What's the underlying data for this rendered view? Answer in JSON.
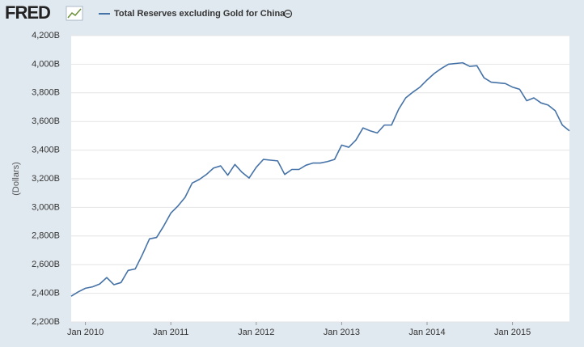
{
  "logo": "FRED",
  "chart_data": {
    "type": "line",
    "y_label": "(Dollars)",
    "x": [
      "2009-11",
      "2009-12",
      "2010-01",
      "2010-02",
      "2010-03",
      "2010-04",
      "2010-05",
      "2010-06",
      "2010-07",
      "2010-08",
      "2010-09",
      "2010-10",
      "2010-11",
      "2010-12",
      "2011-01",
      "2011-02",
      "2011-03",
      "2011-04",
      "2011-05",
      "2011-06",
      "2011-07",
      "2011-08",
      "2011-09",
      "2011-10",
      "2011-11",
      "2011-12",
      "2012-01",
      "2012-02",
      "2012-03",
      "2012-04",
      "2012-05",
      "2012-06",
      "2012-07",
      "2012-08",
      "2012-09",
      "2012-10",
      "2012-11",
      "2012-12",
      "2013-01",
      "2013-02",
      "2013-03",
      "2013-04",
      "2013-05",
      "2013-06",
      "2013-07",
      "2013-08",
      "2013-09",
      "2013-10",
      "2013-11",
      "2013-12",
      "2014-01",
      "2014-02",
      "2014-03",
      "2014-04",
      "2014-05",
      "2014-06",
      "2014-07",
      "2014-08",
      "2014-09",
      "2014-10",
      "2014-11",
      "2014-12",
      "2015-01",
      "2015-02",
      "2015-03",
      "2015-04",
      "2015-05",
      "2015-06",
      "2015-07",
      "2015-08",
      "2015-09"
    ],
    "series": [
      {
        "name": "Total Reserves excluding Gold for China",
        "color": "#4572a7",
        "values": [
          2380,
          2410,
          2435,
          2445,
          2465,
          2510,
          2460,
          2475,
          2560,
          2570,
          2670,
          2780,
          2790,
          2870,
          2960,
          3010,
          3070,
          3170,
          3195,
          3230,
          3275,
          3290,
          3225,
          3300,
          3245,
          3205,
          3280,
          3335,
          3330,
          3325,
          3230,
          3265,
          3265,
          3295,
          3310,
          3310,
          3320,
          3335,
          3435,
          3420,
          3470,
          3555,
          3535,
          3520,
          3575,
          3575,
          3685,
          3765,
          3805,
          3840,
          3890,
          3935,
          3970,
          4000,
          4005,
          4010,
          3985,
          3990,
          3905,
          3875,
          3870,
          3865,
          3840,
          3825,
          3745,
          3765,
          3730,
          3715,
          3675,
          3575,
          3535
        ]
      }
    ],
    "xlim": [
      "2009-11",
      "2015-09"
    ],
    "xticks": [
      {
        "value": "2010-01",
        "label": "Jan 2010"
      },
      {
        "value": "2011-01",
        "label": "Jan 2011"
      },
      {
        "value": "2012-01",
        "label": "Jan 2012"
      },
      {
        "value": "2013-01",
        "label": "Jan 2013"
      },
      {
        "value": "2014-01",
        "label": "Jan 2014"
      },
      {
        "value": "2015-01",
        "label": "Jan 2015"
      }
    ],
    "ylim": [
      2200,
      4200
    ],
    "yticks": [
      {
        "value": 2200,
        "label": "2,200B"
      },
      {
        "value": 2400,
        "label": "2,400B"
      },
      {
        "value": 2600,
        "label": "2,600B"
      },
      {
        "value": 2800,
        "label": "2,800B"
      },
      {
        "value": 3000,
        "label": "3,000B"
      },
      {
        "value": 3200,
        "label": "3,200B"
      },
      {
        "value": 3400,
        "label": "3,400B"
      },
      {
        "value": 3600,
        "label": "3,600B"
      },
      {
        "value": 3800,
        "label": "3,800B"
      },
      {
        "value": 4000,
        "label": "4,000B"
      },
      {
        "value": 4200,
        "label": "4,200B"
      }
    ],
    "grid": true
  }
}
